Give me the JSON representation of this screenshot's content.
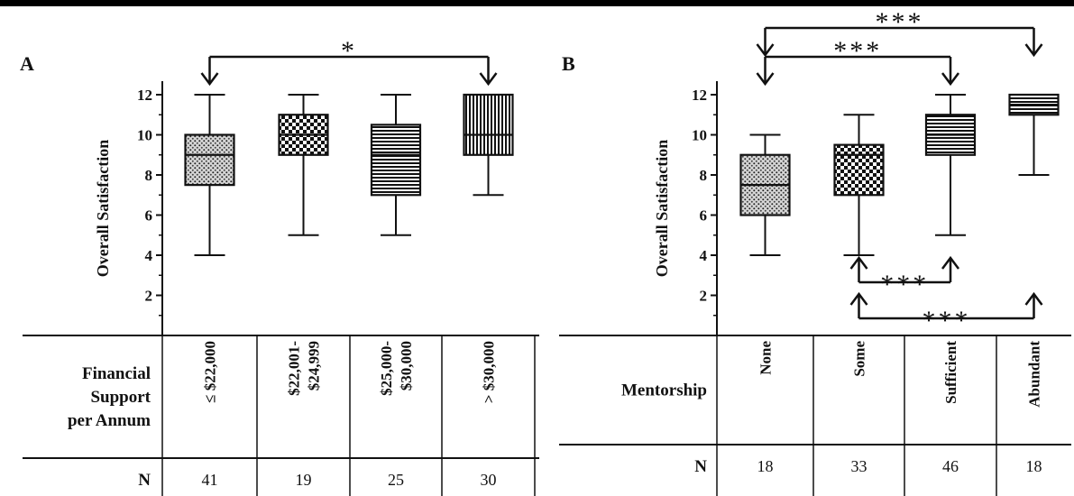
{
  "chart_data": [
    {
      "panel_label": "A",
      "type": "boxplot",
      "ylabel": "Overall Satisfaction",
      "ylim": [
        0,
        12
      ],
      "yticks": [
        2,
        4,
        6,
        8,
        10,
        12
      ],
      "row_label": "Financial Support per Annum",
      "row_label_lines": [
        "Financial",
        "Support",
        "per Annum"
      ],
      "n_label": "N",
      "categories": [
        {
          "lines": [
            "≤ $22,000"
          ],
          "n": "41",
          "min": 4,
          "q1": 7.5,
          "median": 9,
          "q3": 10,
          "max": 12,
          "pattern": "dots"
        },
        {
          "lines": [
            "$22,001-",
            "$24,999"
          ],
          "n": "19",
          "min": 5,
          "q1": 9,
          "median": 10,
          "q3": 11,
          "max": 12,
          "pattern": "checker"
        },
        {
          "lines": [
            "$25,000-",
            "$30,000"
          ],
          "n": "25",
          "min": 5,
          "q1": 7,
          "median": 9,
          "q3": 10.5,
          "max": 12,
          "pattern": "hlines"
        },
        {
          "lines": [
            "> $30,000"
          ],
          "n": "30",
          "min": 7,
          "q1": 9,
          "median": 10,
          "q3": 12,
          "max": 12,
          "pattern": "vlines"
        }
      ],
      "significance": [
        {
          "from": 0,
          "to": 3,
          "label": "*",
          "position": "top",
          "level": 0
        }
      ]
    },
    {
      "panel_label": "B",
      "type": "boxplot",
      "ylabel": "Overall Satisfaction",
      "ylim": [
        0,
        12
      ],
      "yticks": [
        2,
        4,
        6,
        8,
        10,
        12
      ],
      "row_label": "Mentorship",
      "row_label_lines": [
        "Mentorship"
      ],
      "n_label": "N",
      "categories": [
        {
          "lines": [
            "None"
          ],
          "n": "18",
          "min": 4,
          "q1": 6,
          "median": 7.5,
          "q3": 9,
          "max": 10,
          "pattern": "dots"
        },
        {
          "lines": [
            "Some"
          ],
          "n": "33",
          "min": 4,
          "q1": 7,
          "median": 9,
          "q3": 9.5,
          "max": 11,
          "pattern": "checker"
        },
        {
          "lines": [
            "Sufficient"
          ],
          "n": "46",
          "min": 5,
          "q1": 9,
          "median": 10,
          "q3": 11,
          "max": 12,
          "pattern": "hlines"
        },
        {
          "lines": [
            "Abundant"
          ],
          "n": "18",
          "min": 8,
          "q1": 11,
          "median": 11.5,
          "q3": 12,
          "max": 12,
          "pattern": "hlines"
        }
      ],
      "significance": [
        {
          "from": 0,
          "to": 3,
          "label": "***",
          "position": "top",
          "level": 1
        },
        {
          "from": 0,
          "to": 2,
          "label": "***",
          "position": "top",
          "level": 0
        },
        {
          "from": 1,
          "to": 2,
          "label": "***",
          "position": "bottom",
          "level": 0
        },
        {
          "from": 1,
          "to": 3,
          "label": "***",
          "position": "bottom",
          "level": 1
        }
      ]
    }
  ]
}
